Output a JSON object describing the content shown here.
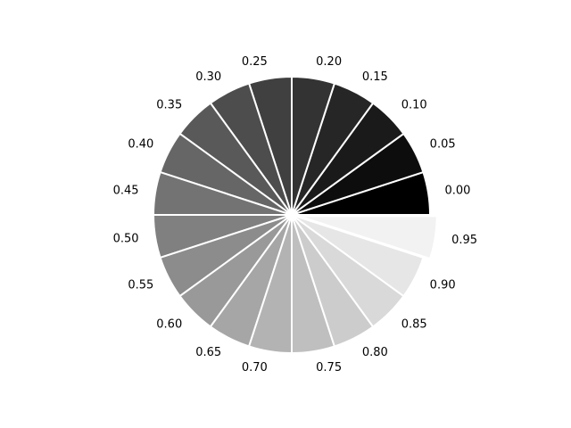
{
  "chart_data": {
    "type": "pie",
    "labels": [
      "0.00",
      "0.05",
      "0.10",
      "0.15",
      "0.20",
      "0.25",
      "0.30",
      "0.35",
      "0.40",
      "0.45",
      "0.50",
      "0.55",
      "0.60",
      "0.65",
      "0.70",
      "0.75",
      "0.80",
      "0.85",
      "0.90",
      "0.95"
    ],
    "values": [
      1,
      1,
      1,
      1,
      1,
      1,
      1,
      1,
      1,
      1,
      1,
      1,
      1,
      1,
      1,
      1,
      1,
      1,
      1,
      1
    ],
    "colors": [
      "#000000",
      "#0d0d0d",
      "#1a1a1a",
      "#262626",
      "#333333",
      "#404040",
      "#4d4d4d",
      "#595959",
      "#666666",
      "#737373",
      "#808080",
      "#8c8c8c",
      "#999999",
      "#a6a6a6",
      "#b3b3b3",
      "#bfbfbf",
      "#cccccc",
      "#d9d9d9",
      "#e6e6e6",
      "#f2f2f2"
    ],
    "explode": [
      0,
      0,
      0,
      0,
      0,
      0,
      0,
      0,
      0,
      0,
      0,
      0,
      0,
      0,
      0,
      0,
      0,
      0,
      0,
      0.05
    ],
    "start_angle_deg": 0,
    "direction": "counterclockwise",
    "wedge_edge_color": "#ffffff"
  }
}
